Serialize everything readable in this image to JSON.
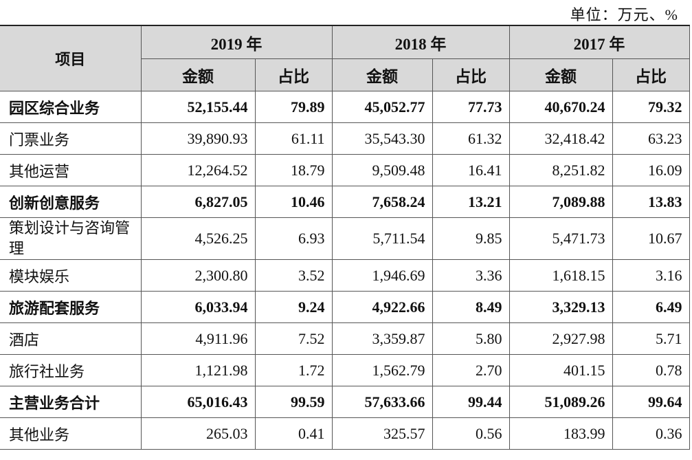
{
  "unit_note": "单位：万元、%",
  "header": {
    "item_label": "项目",
    "years": [
      "2019 年",
      "2018 年",
      "2017 年"
    ],
    "amount_label": "金额",
    "ratio_label": "占比"
  },
  "rows": [
    {
      "label": "园区综合业务",
      "bold": true,
      "values": [
        "52,155.44",
        "79.89",
        "45,052.77",
        "77.73",
        "40,670.24",
        "79.32"
      ]
    },
    {
      "label": "门票业务",
      "bold": false,
      "values": [
        "39,890.93",
        "61.11",
        "35,543.30",
        "61.32",
        "32,418.42",
        "63.23"
      ]
    },
    {
      "label": "其他运营",
      "bold": false,
      "values": [
        "12,264.52",
        "18.79",
        "9,509.48",
        "16.41",
        "8,251.82",
        "16.09"
      ]
    },
    {
      "label": "创新创意服务",
      "bold": true,
      "values": [
        "6,827.05",
        "10.46",
        "7,658.24",
        "13.21",
        "7,089.88",
        "13.83"
      ]
    },
    {
      "label": "策划设计与咨询管理",
      "bold": false,
      "values": [
        "4,526.25",
        "6.93",
        "5,711.54",
        "9.85",
        "5,471.73",
        "10.67"
      ]
    },
    {
      "label": "模块娱乐",
      "bold": false,
      "values": [
        "2,300.80",
        "3.52",
        "1,946.69",
        "3.36",
        "1,618.15",
        "3.16"
      ]
    },
    {
      "label": "旅游配套服务",
      "bold": true,
      "values": [
        "6,033.94",
        "9.24",
        "4,922.66",
        "8.49",
        "3,329.13",
        "6.49"
      ]
    },
    {
      "label": "酒店",
      "bold": false,
      "values": [
        "4,911.96",
        "7.52",
        "3,359.87",
        "5.80",
        "2,927.98",
        "5.71"
      ]
    },
    {
      "label": "旅行社业务",
      "bold": false,
      "values": [
        "1,121.98",
        "1.72",
        "1,562.79",
        "2.70",
        "401.15",
        "0.78"
      ]
    },
    {
      "label": "主营业务合计",
      "bold": true,
      "values": [
        "65,016.43",
        "99.59",
        "57,633.66",
        "99.44",
        "51,089.26",
        "99.64"
      ]
    },
    {
      "label": "其他业务",
      "bold": false,
      "values": [
        "265.03",
        "0.41",
        "325.57",
        "0.56",
        "183.99",
        "0.36"
      ]
    }
  ]
}
